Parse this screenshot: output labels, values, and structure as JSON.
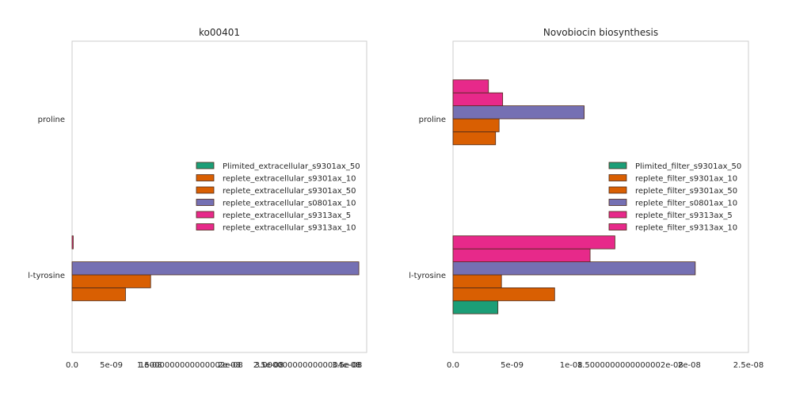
{
  "chart_data": [
    {
      "type": "bar",
      "orientation": "horizontal",
      "title": "ko00401",
      "xlabel": "",
      "ylabel": "",
      "categories": [
        "l-tyrosine",
        "proline"
      ],
      "xlim": [
        0,
        3.75e-08
      ],
      "xticks": [
        0,
        5e-09,
        1e-08,
        1.5e-08,
        2e-08,
        2.5e-08,
        3e-08,
        3.5e-08
      ],
      "xtick_labels": [
        "0.0",
        "5e-09",
        "1e-08",
        "1.5000000000000002e-08",
        "2e-08",
        "2.5e-08",
        "3.0000000000000004e-08",
        "3.5e-08"
      ],
      "legend_position": "right",
      "grid": false,
      "series": [
        {
          "name": "Plimited_extracellular_s9301ax_50",
          "color": "#1b9e77",
          "values": [
            0,
            0
          ]
        },
        {
          "name": "replete_extracellular_s9301ax_10",
          "color": "#d95f02",
          "values": [
            6.8e-09,
            0
          ]
        },
        {
          "name": "replete_extracellular_s9301ax_50",
          "color": "#d95f02",
          "values": [
            1e-08,
            0
          ]
        },
        {
          "name": "replete_extracellular_s0801ax_10",
          "color": "#7570b3",
          "values": [
            3.65e-08,
            0
          ]
        },
        {
          "name": "replete_extracellular_s9313ax_5",
          "color": "#e7298a",
          "values": [
            0,
            0
          ]
        },
        {
          "name": "replete_extracellular_s9313ax_10",
          "color": "#e7298a",
          "values": [
            1.5e-10,
            0
          ]
        }
      ]
    },
    {
      "type": "bar",
      "orientation": "horizontal",
      "title": "Novobiocin biosynthesis",
      "xlabel": "",
      "ylabel": "",
      "categories": [
        "l-tyrosine",
        "proline"
      ],
      "xlim": [
        0,
        2.5e-08
      ],
      "xticks": [
        0,
        5e-09,
        1e-08,
        1.5e-08,
        2e-08,
        2.5e-08
      ],
      "xtick_labels": [
        "0.0",
        "5e-09",
        "1e-08",
        "1.5000000000000002e-08",
        "2e-08",
        "2.5e-08"
      ],
      "legend_position": "right",
      "grid": false,
      "series": [
        {
          "name": "Plimited_filter_s9301ax_50",
          "color": "#1b9e77",
          "values": [
            3.8e-09,
            0
          ]
        },
        {
          "name": "replete_filter_s9301ax_10",
          "color": "#d95f02",
          "values": [
            8.6e-09,
            3.6e-09
          ]
        },
        {
          "name": "replete_filter_s9301ax_50",
          "color": "#d95f02",
          "values": [
            4.1e-09,
            3.9e-09
          ]
        },
        {
          "name": "replete_filter_s0801ax_10",
          "color": "#7570b3",
          "values": [
            2.05e-08,
            1.11e-08
          ]
        },
        {
          "name": "replete_filter_s9313ax_5",
          "color": "#e7298a",
          "values": [
            1.16e-08,
            4.2e-09
          ]
        },
        {
          "name": "replete_filter_s9313ax_10",
          "color": "#e7298a",
          "values": [
            1.37e-08,
            3e-09
          ]
        }
      ]
    }
  ]
}
